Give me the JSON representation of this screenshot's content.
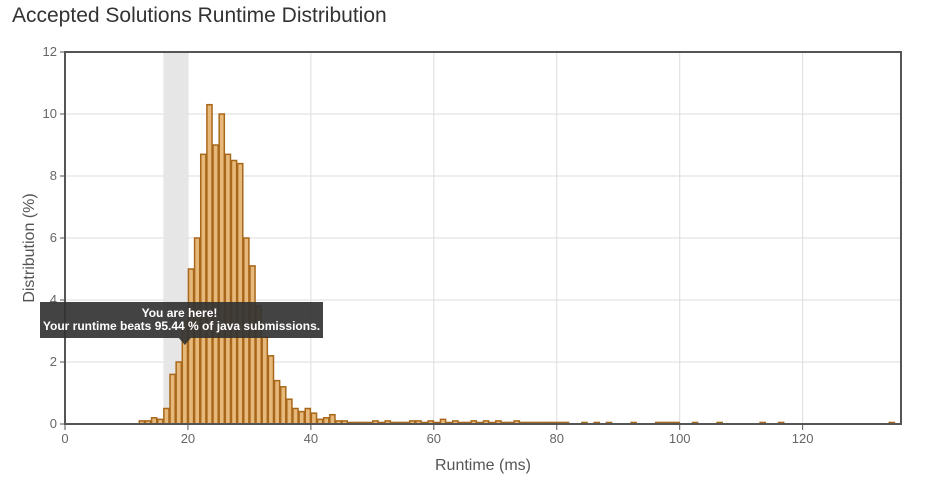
{
  "title": "Accepted Solutions Runtime Distribution",
  "tooltip": {
    "line1": "You are here!",
    "line2": "Your runtime beats 95.44 % of java submissions."
  },
  "colors": {
    "bar_fill": "#e6b97a",
    "bar_stroke": "#a8671a",
    "highlight": "#e6e6e6",
    "grid": "#dddddd",
    "frame": "#555555",
    "tooltip_bg": "#333333"
  },
  "chart_data": {
    "type": "bar",
    "title": "Accepted Solutions Runtime Distribution",
    "xlabel": "Runtime (ms)",
    "ylabel": "Distribution (%)",
    "xlim": [
      0,
      136
    ],
    "ylim": [
      0,
      12
    ],
    "xticks": [
      "0",
      "20",
      "40",
      "60",
      "80",
      "100",
      "120"
    ],
    "xtick_values": [
      0,
      20,
      40,
      60,
      80,
      100,
      120
    ],
    "yticks": [
      "0",
      "2",
      "4",
      "6",
      "8",
      "10",
      "12"
    ],
    "ytick_values": [
      0,
      2,
      4,
      6,
      8,
      10,
      12
    ],
    "grid": true,
    "bin_width": 1,
    "highlight_range": [
      16,
      20
    ],
    "marker_x": 19,
    "bins": [
      {
        "x": 12,
        "y": 0.1
      },
      {
        "x": 13,
        "y": 0.1
      },
      {
        "x": 14,
        "y": 0.2
      },
      {
        "x": 15,
        "y": 0.15
      },
      {
        "x": 16,
        "y": 0.5
      },
      {
        "x": 17,
        "y": 1.6
      },
      {
        "x": 18,
        "y": 2.0
      },
      {
        "x": 19,
        "y": 3.3
      },
      {
        "x": 20,
        "y": 5.0
      },
      {
        "x": 21,
        "y": 6.0
      },
      {
        "x": 22,
        "y": 8.7
      },
      {
        "x": 23,
        "y": 10.3
      },
      {
        "x": 24,
        "y": 9.0
      },
      {
        "x": 25,
        "y": 10.0
      },
      {
        "x": 26,
        "y": 8.7
      },
      {
        "x": 27,
        "y": 8.5
      },
      {
        "x": 28,
        "y": 8.4
      },
      {
        "x": 29,
        "y": 6.0
      },
      {
        "x": 30,
        "y": 5.1
      },
      {
        "x": 31,
        "y": 3.8
      },
      {
        "x": 32,
        "y": 2.8
      },
      {
        "x": 33,
        "y": 2.2
      },
      {
        "x": 34,
        "y": 1.4
      },
      {
        "x": 35,
        "y": 1.2
      },
      {
        "x": 36,
        "y": 0.8
      },
      {
        "x": 37,
        "y": 0.5
      },
      {
        "x": 38,
        "y": 0.4
      },
      {
        "x": 39,
        "y": 0.5
      },
      {
        "x": 40,
        "y": 0.35
      },
      {
        "x": 41,
        "y": 0.15
      },
      {
        "x": 42,
        "y": 0.2
      },
      {
        "x": 43,
        "y": 0.3
      },
      {
        "x": 44,
        "y": 0.1
      },
      {
        "x": 45,
        "y": 0.1
      },
      {
        "x": 46,
        "y": 0.05
      },
      {
        "x": 47,
        "y": 0.05
      },
      {
        "x": 48,
        "y": 0.05
      },
      {
        "x": 49,
        "y": 0.05
      },
      {
        "x": 50,
        "y": 0.1
      },
      {
        "x": 51,
        "y": 0.05
      },
      {
        "x": 52,
        "y": 0.1
      },
      {
        "x": 53,
        "y": 0.05
      },
      {
        "x": 54,
        "y": 0.05
      },
      {
        "x": 55,
        "y": 0.05
      },
      {
        "x": 56,
        "y": 0.1
      },
      {
        "x": 57,
        "y": 0.1
      },
      {
        "x": 58,
        "y": 0.05
      },
      {
        "x": 59,
        "y": 0.1
      },
      {
        "x": 60,
        "y": 0.05
      },
      {
        "x": 61,
        "y": 0.15
      },
      {
        "x": 62,
        "y": 0.05
      },
      {
        "x": 63,
        "y": 0.1
      },
      {
        "x": 64,
        "y": 0.05
      },
      {
        "x": 65,
        "y": 0.05
      },
      {
        "x": 66,
        "y": 0.1
      },
      {
        "x": 67,
        "y": 0.05
      },
      {
        "x": 68,
        "y": 0.1
      },
      {
        "x": 69,
        "y": 0.05
      },
      {
        "x": 70,
        "y": 0.1
      },
      {
        "x": 71,
        "y": 0.05
      },
      {
        "x": 72,
        "y": 0.05
      },
      {
        "x": 73,
        "y": 0.1
      },
      {
        "x": 74,
        "y": 0.05
      },
      {
        "x": 75,
        "y": 0.05
      },
      {
        "x": 76,
        "y": 0.05
      },
      {
        "x": 77,
        "y": 0.05
      },
      {
        "x": 78,
        "y": 0.05
      },
      {
        "x": 79,
        "y": 0.05
      },
      {
        "x": 80,
        "y": 0.05
      },
      {
        "x": 81,
        "y": 0.05
      },
      {
        "x": 84,
        "y": 0.05
      },
      {
        "x": 86,
        "y": 0.05
      },
      {
        "x": 88,
        "y": 0.05
      },
      {
        "x": 92,
        "y": 0.05
      },
      {
        "x": 96,
        "y": 0.05
      },
      {
        "x": 97,
        "y": 0.05
      },
      {
        "x": 98,
        "y": 0.05
      },
      {
        "x": 99,
        "y": 0.05
      },
      {
        "x": 102,
        "y": 0.05
      },
      {
        "x": 106,
        "y": 0.05
      },
      {
        "x": 113,
        "y": 0.05
      },
      {
        "x": 116,
        "y": 0.05
      },
      {
        "x": 134,
        "y": 0.05
      }
    ]
  }
}
